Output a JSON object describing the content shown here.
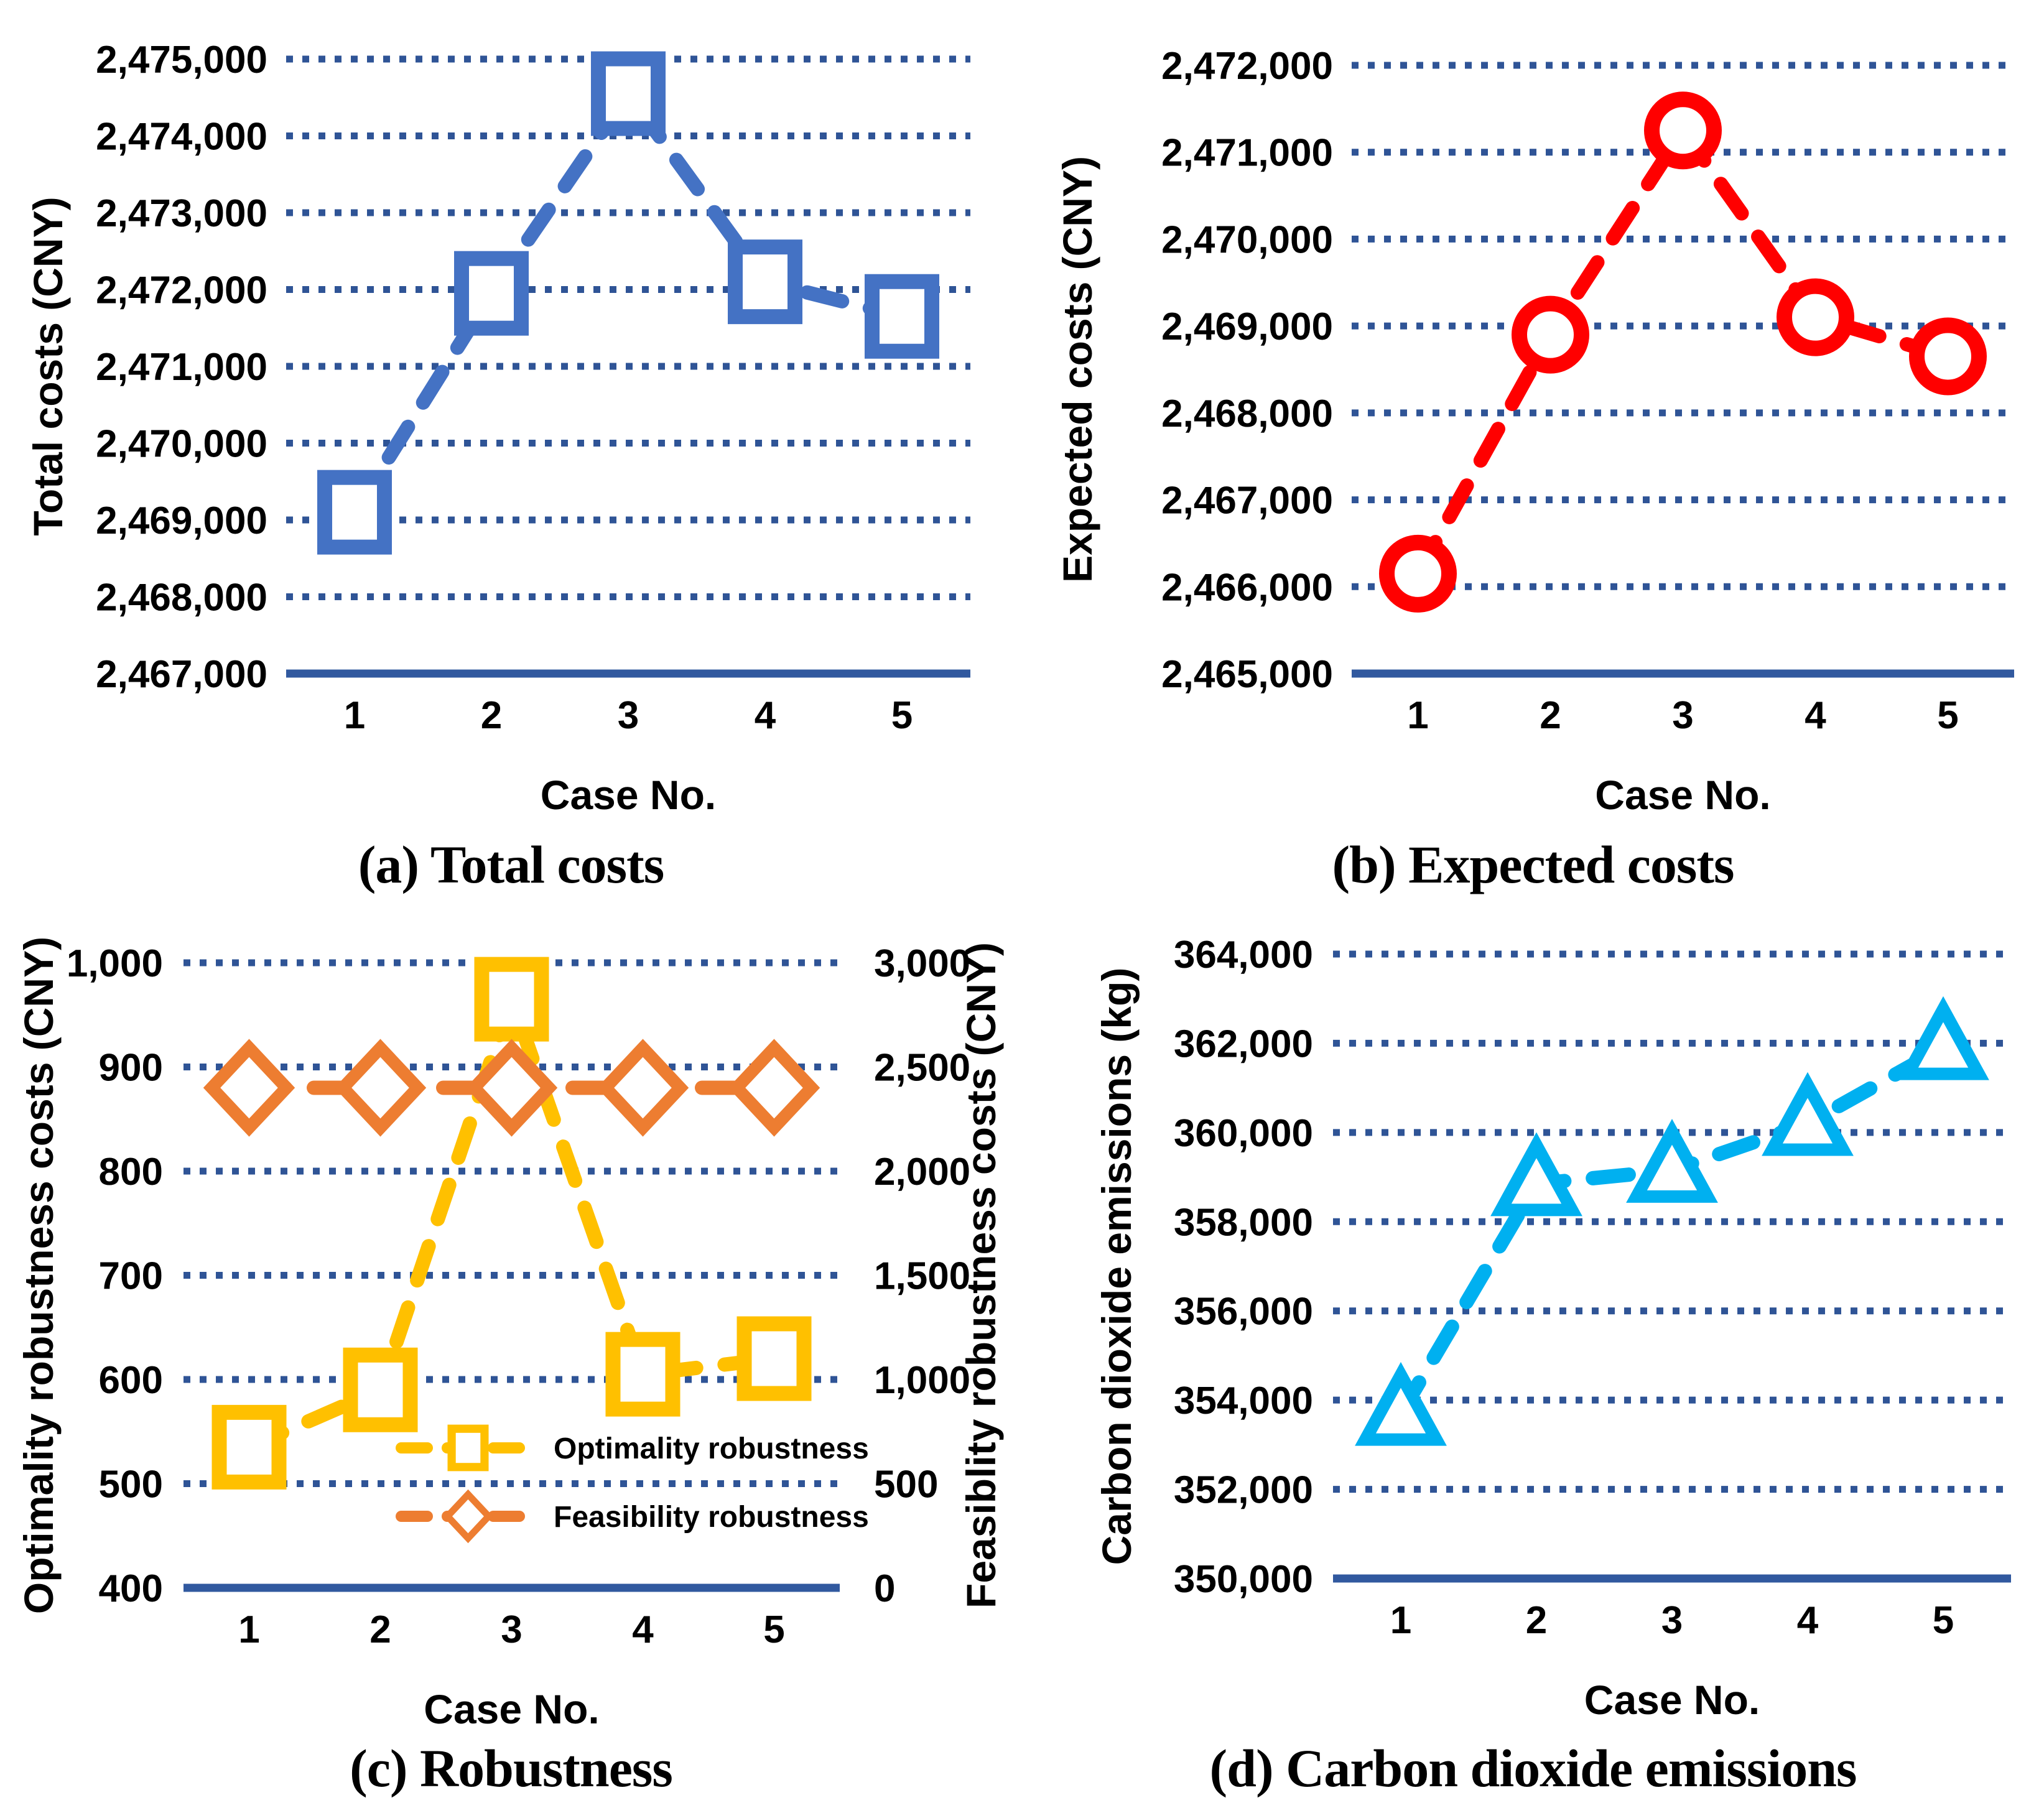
{
  "page": {
    "background": "#FFFFFF"
  },
  "style": {
    "gridline_color": "#2F5496",
    "axis_color": "#31599F",
    "marker_fill": "#FFFFFF",
    "blue": "#4472C4",
    "red": "#FF0000",
    "gold": "#FFC000",
    "orange": "#ED7D31",
    "cyan": "#00B0F0",
    "text_color": "#000000"
  },
  "chart_data": [
    {
      "id": "a",
      "type": "line",
      "caption": "(a) Total costs",
      "xlabel": "Case No.",
      "categories": [
        "1",
        "2",
        "3",
        "4",
        "5"
      ],
      "y_left": {
        "label": "Total costs (CNY)",
        "lim": [
          2467000,
          2475000
        ],
        "grid": true,
        "ticks": [
          {
            "v": 2467000,
            "label": "2,467,000"
          },
          {
            "v": 2468000,
            "label": "2,468,000"
          },
          {
            "v": 2469000,
            "label": "2,469,000"
          },
          {
            "v": 2470000,
            "label": "2,470,000"
          },
          {
            "v": 2471000,
            "label": "2,471,000"
          },
          {
            "v": 2472000,
            "label": "2,472,000"
          },
          {
            "v": 2473000,
            "label": "2,473,000"
          },
          {
            "v": 2474000,
            "label": "2,474,000"
          },
          {
            "v": 2475000,
            "label": "2,475,000"
          }
        ]
      },
      "series": [
        {
          "name": "Total costs",
          "axis": "left",
          "marker": "square",
          "color": "#4472C4",
          "values": [
            2469100,
            2471950,
            2474550,
            2472100,
            2471650
          ]
        }
      ],
      "layout": {
        "plot_left": 460,
        "plot_right": 1560,
        "y_top": 95,
        "y_bottom": 1083,
        "tick_label_x": 430,
        "ytitle_x": 100
      }
    },
    {
      "id": "b",
      "type": "line",
      "caption": "(b) Expected costs",
      "xlabel": "Case No.",
      "categories": [
        "1",
        "2",
        "3",
        "4",
        "5"
      ],
      "y_left": {
        "label": "Expected costs (CNY)",
        "lim": [
          2465000,
          2472000
        ],
        "grid": true,
        "ticks": [
          {
            "v": 2465000,
            "label": "2,465,000"
          },
          {
            "v": 2466000,
            "label": "2,466,000"
          },
          {
            "v": 2467000,
            "label": "2,467,000"
          },
          {
            "v": 2468000,
            "label": "2,468,000"
          },
          {
            "v": 2469000,
            "label": "2,469,000"
          },
          {
            "v": 2470000,
            "label": "2,470,000"
          },
          {
            "v": 2471000,
            "label": "2,471,000"
          },
          {
            "v": 2472000,
            "label": "2,472,000"
          }
        ]
      },
      "series": [
        {
          "name": "Expected costs",
          "axis": "left",
          "marker": "circle",
          "color": "#FF0000",
          "values": [
            2466150,
            2468900,
            2471250,
            2469100,
            2468650
          ]
        }
      ],
      "layout": {
        "plot_left": 530,
        "plot_right": 1595,
        "y_top": 105,
        "y_bottom": 1083,
        "tick_label_x": 500,
        "ytitle_x": 112
      }
    },
    {
      "id": "c",
      "type": "line",
      "caption": "(c) Robustness",
      "xlabel": "Case No.",
      "categories": [
        "1",
        "2",
        "3",
        "4",
        "5"
      ],
      "y_left": {
        "label": "Optimality robustness costs (CNY)",
        "lim": [
          400,
          1000
        ],
        "grid": true,
        "ticks": [
          {
            "v": 400,
            "label": "400"
          },
          {
            "v": 500,
            "label": "500"
          },
          {
            "v": 600,
            "label": "600"
          },
          {
            "v": 700,
            "label": "700"
          },
          {
            "v": 800,
            "label": "800"
          },
          {
            "v": 900,
            "label": "900"
          },
          {
            "v": 1000,
            "label": "1,000"
          }
        ]
      },
      "y_right": {
        "label": "Feasiblity robustness costs (CNY)",
        "lim": [
          0,
          3000
        ],
        "ticks": [
          {
            "v": 0,
            "label": "0"
          },
          {
            "v": 500,
            "label": "500"
          },
          {
            "v": 1000,
            "label": "1,000"
          },
          {
            "v": 1500,
            "label": "1,500"
          },
          {
            "v": 2000,
            "label": "2,000"
          },
          {
            "v": 2500,
            "label": "2,500"
          },
          {
            "v": 3000,
            "label": "3,000"
          }
        ]
      },
      "series": [
        {
          "name": "Optimality robustness",
          "axis": "left",
          "marker": "square",
          "color": "#FFC000",
          "values": [
            535,
            590,
            965,
            605,
            620
          ]
        },
        {
          "name": "Feasibility robustness",
          "axis": "right",
          "marker": "diamond",
          "color": "#ED7D31",
          "values": [
            2400,
            2400,
            2400,
            2400,
            2400
          ]
        }
      ],
      "legend": {
        "x": 645,
        "sample_w": 215,
        "text_dx": 30,
        "row_y": [
          875,
          985
        ],
        "items": [
          {
            "label": "Optimality robustness"
          },
          {
            "label": "Feasibility robustness"
          }
        ]
      },
      "layout": {
        "plot_left": 295,
        "plot_right": 1350,
        "y_top": 95,
        "y_bottom": 1100,
        "tick_label_x": 262,
        "ytitle_x": 85,
        "right_tick_label_x": 1405,
        "right_ytitle_x": 1600
      }
    },
    {
      "id": "d",
      "type": "line",
      "caption": "(d) Carbon dioxide emissions",
      "xlabel": "Case No.",
      "categories": [
        "1",
        "2",
        "3",
        "4",
        "5"
      ],
      "y_left": {
        "label": "Carbon dioxide emissions (kg)",
        "lim": [
          350000,
          364000
        ],
        "grid": true,
        "ticks": [
          {
            "v": 350000,
            "label": "350,000"
          },
          {
            "v": 352000,
            "label": "352,000"
          },
          {
            "v": 354000,
            "label": "354,000"
          },
          {
            "v": 356000,
            "label": "356,000"
          },
          {
            "v": 358000,
            "label": "358,000"
          },
          {
            "v": 360000,
            "label": "360,000"
          },
          {
            "v": 362000,
            "label": "362,000"
          },
          {
            "v": 364000,
            "label": "364,000"
          }
        ]
      },
      "series": [
        {
          "name": "Carbon dioxide emissions",
          "axis": "left",
          "marker": "triangle",
          "color": "#00B0F0",
          "values": [
            353700,
            358850,
            359150,
            360200,
            361900
          ]
        }
      ],
      "layout": {
        "plot_left": 500,
        "plot_right": 1590,
        "y_top": 81,
        "y_bottom": 1085,
        "tick_label_x": 468,
        "ytitle_x": 175
      }
    }
  ]
}
